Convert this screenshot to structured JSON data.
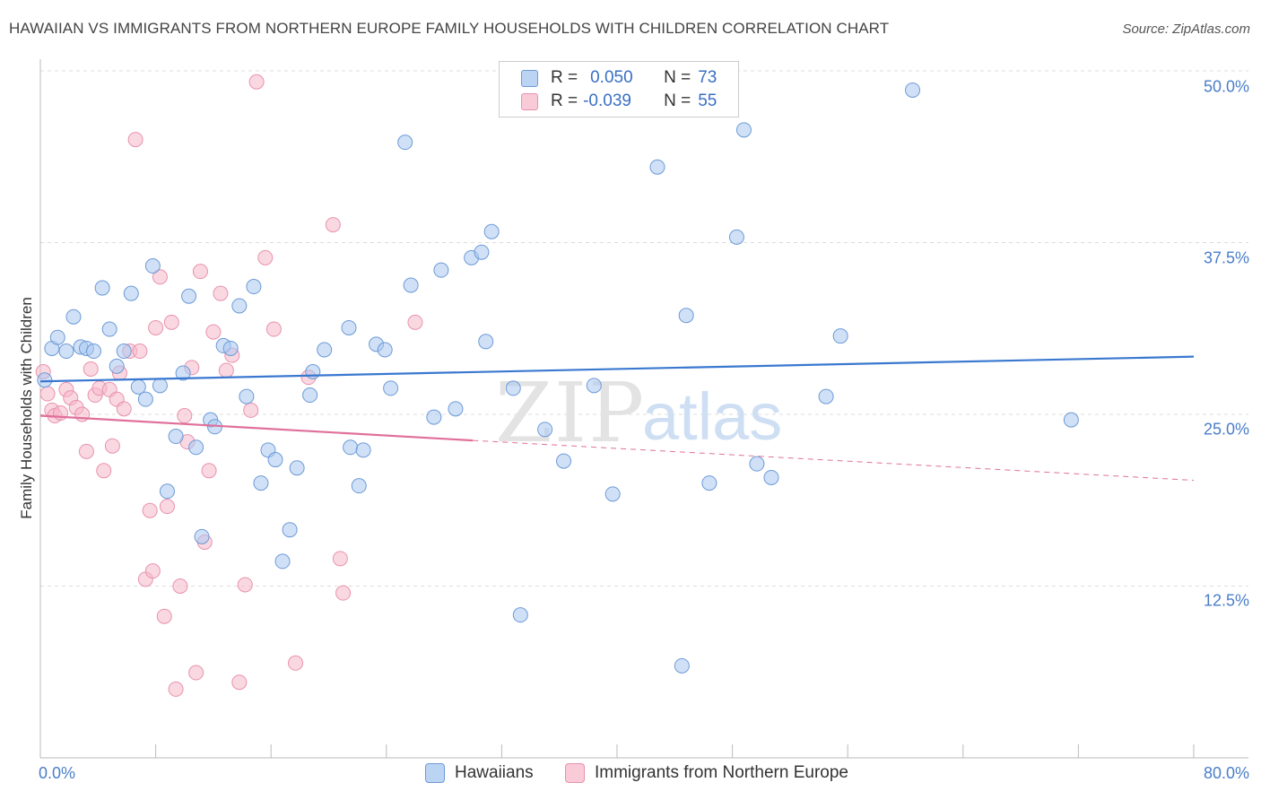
{
  "header": {
    "title": "HAWAIIAN VS IMMIGRANTS FROM NORTHERN EUROPE FAMILY HOUSEHOLDS WITH CHILDREN CORRELATION CHART",
    "source": "Source: ZipAtlas.com"
  },
  "watermark": {
    "part1": "ZIP",
    "part2": "atlas"
  },
  "legend": {
    "series1": {
      "r_label": "R =",
      "r_value": "0.050",
      "n_label": "N =",
      "n_value": "73"
    },
    "series2": {
      "r_label": "R =",
      "r_value": "-0.039",
      "n_label": "N =",
      "n_value": "55"
    }
  },
  "bottom_legend": {
    "series1": "Hawaiians",
    "series2": "Immigrants from Northern Europe"
  },
  "colors": {
    "blue_fill": "#a9c8f0",
    "blue_stroke": "#6d9ad6",
    "blue_line": "#3a78d0",
    "pink_fill": "#f6b8cb",
    "pink_stroke": "#e892ad",
    "pink_line": "#e0709a",
    "tick_text": "#4a7ec9",
    "grid": "#dddddd"
  },
  "chart_data": {
    "type": "scatter",
    "title": "HAWAIIAN VS IMMIGRANTS FROM NORTHERN EUROPE FAMILY HOUSEHOLDS WITH CHILDREN CORRELATION CHART",
    "xlabel": "",
    "ylabel": "Family Households with Children",
    "xlim": [
      0,
      80
    ],
    "ylim": [
      0,
      50
    ],
    "x_tick_labels": [
      "0.0%",
      "80.0%"
    ],
    "y_ticks": [
      12.5,
      25.0,
      37.5,
      50.0
    ],
    "y_tick_labels": [
      "12.5%",
      "25.0%",
      "37.5%",
      "50.0%"
    ],
    "grid": true,
    "legend_position": "top-center",
    "series": [
      {
        "name": "Hawaiians",
        "r": 0.05,
        "n": 73,
        "trend": {
          "x": [
            0,
            80
          ],
          "y": [
            27.4,
            29.2
          ]
        },
        "points": [
          [
            0.3,
            27.5
          ],
          [
            0.8,
            29.8
          ],
          [
            1.2,
            30.6
          ],
          [
            1.8,
            29.6
          ],
          [
            2.3,
            32.1
          ],
          [
            2.8,
            29.9
          ],
          [
            3.2,
            29.8
          ],
          [
            3.7,
            29.6
          ],
          [
            4.3,
            34.2
          ],
          [
            4.8,
            31.2
          ],
          [
            5.3,
            28.5
          ],
          [
            5.8,
            29.6
          ],
          [
            6.3,
            33.8
          ],
          [
            6.8,
            27.0
          ],
          [
            7.3,
            26.1
          ],
          [
            7.8,
            35.8
          ],
          [
            8.3,
            27.1
          ],
          [
            8.8,
            19.4
          ],
          [
            9.4,
            23.4
          ],
          [
            9.9,
            28.0
          ],
          [
            10.3,
            33.6
          ],
          [
            10.8,
            22.6
          ],
          [
            11.2,
            16.1
          ],
          [
            11.8,
            24.6
          ],
          [
            12.1,
            24.1
          ],
          [
            12.7,
            30.0
          ],
          [
            13.2,
            29.8
          ],
          [
            13.8,
            32.9
          ],
          [
            14.3,
            26.3
          ],
          [
            14.8,
            34.3
          ],
          [
            15.3,
            20.0
          ],
          [
            15.8,
            22.4
          ],
          [
            16.3,
            21.7
          ],
          [
            16.8,
            14.3
          ],
          [
            17.3,
            16.6
          ],
          [
            17.8,
            21.1
          ],
          [
            18.7,
            26.4
          ],
          [
            18.9,
            28.1
          ],
          [
            19.7,
            29.7
          ],
          [
            21.4,
            31.3
          ],
          [
            21.5,
            22.6
          ],
          [
            22.1,
            19.8
          ],
          [
            22.4,
            22.4
          ],
          [
            23.3,
            30.1
          ],
          [
            23.9,
            29.7
          ],
          [
            24.3,
            26.9
          ],
          [
            25.3,
            44.8
          ],
          [
            25.7,
            34.4
          ],
          [
            27.3,
            24.8
          ],
          [
            27.8,
            35.5
          ],
          [
            28.8,
            25.4
          ],
          [
            29.9,
            36.4
          ],
          [
            30.6,
            36.8
          ],
          [
            30.9,
            30.3
          ],
          [
            31.3,
            38.3
          ],
          [
            32.8,
            26.9
          ],
          [
            33.3,
            10.4
          ],
          [
            35.0,
            23.9
          ],
          [
            36.3,
            21.6
          ],
          [
            38.4,
            27.1
          ],
          [
            39.7,
            19.2
          ],
          [
            42.8,
            43.0
          ],
          [
            44.5,
            6.7
          ],
          [
            44.8,
            32.2
          ],
          [
            46.4,
            20.0
          ],
          [
            48.3,
            37.9
          ],
          [
            48.8,
            45.7
          ],
          [
            49.7,
            21.4
          ],
          [
            50.7,
            20.4
          ],
          [
            54.5,
            26.3
          ],
          [
            55.5,
            30.7
          ],
          [
            60.5,
            48.6
          ],
          [
            71.5,
            24.6
          ]
        ]
      },
      {
        "name": "Immigrants from Northern Europe",
        "r": -0.039,
        "n": 55,
        "trend": {
          "x": [
            0,
            30
          ],
          "y": [
            24.9,
            23.1
          ]
        },
        "trend_extension": {
          "x": [
            30,
            80
          ],
          "y": [
            23.1,
            20.2
          ]
        },
        "points": [
          [
            0.2,
            28.1
          ],
          [
            0.5,
            26.5
          ],
          [
            0.8,
            25.3
          ],
          [
            1.0,
            24.9
          ],
          [
            1.4,
            25.1
          ],
          [
            1.8,
            26.8
          ],
          [
            2.1,
            26.2
          ],
          [
            2.5,
            25.5
          ],
          [
            2.9,
            25.0
          ],
          [
            3.2,
            22.3
          ],
          [
            3.5,
            28.3
          ],
          [
            3.8,
            26.4
          ],
          [
            4.1,
            26.9
          ],
          [
            4.4,
            20.9
          ],
          [
            4.8,
            26.8
          ],
          [
            5.0,
            22.7
          ],
          [
            5.3,
            26.1
          ],
          [
            5.5,
            28.0
          ],
          [
            5.8,
            25.4
          ],
          [
            6.2,
            29.6
          ],
          [
            6.6,
            45.0
          ],
          [
            6.9,
            29.6
          ],
          [
            7.3,
            13.0
          ],
          [
            7.6,
            18.0
          ],
          [
            7.8,
            13.6
          ],
          [
            8.0,
            31.3
          ],
          [
            8.3,
            35.0
          ],
          [
            8.6,
            10.3
          ],
          [
            8.8,
            18.3
          ],
          [
            9.1,
            31.7
          ],
          [
            9.4,
            5.0
          ],
          [
            9.7,
            12.5
          ],
          [
            10.0,
            24.9
          ],
          [
            10.2,
            23.0
          ],
          [
            10.5,
            28.4
          ],
          [
            10.8,
            6.2
          ],
          [
            11.1,
            35.4
          ],
          [
            11.4,
            15.7
          ],
          [
            11.7,
            20.9
          ],
          [
            12.0,
            31.0
          ],
          [
            12.5,
            33.8
          ],
          [
            12.9,
            28.2
          ],
          [
            13.3,
            29.3
          ],
          [
            13.8,
            5.5
          ],
          [
            14.2,
            12.6
          ],
          [
            14.6,
            25.3
          ],
          [
            15.0,
            49.2
          ],
          [
            15.6,
            36.4
          ],
          [
            16.2,
            31.2
          ],
          [
            18.6,
            27.7
          ],
          [
            17.7,
            6.9
          ],
          [
            20.3,
            38.8
          ],
          [
            20.8,
            14.5
          ],
          [
            21.0,
            12.0
          ],
          [
            26.0,
            31.7
          ]
        ]
      }
    ]
  }
}
